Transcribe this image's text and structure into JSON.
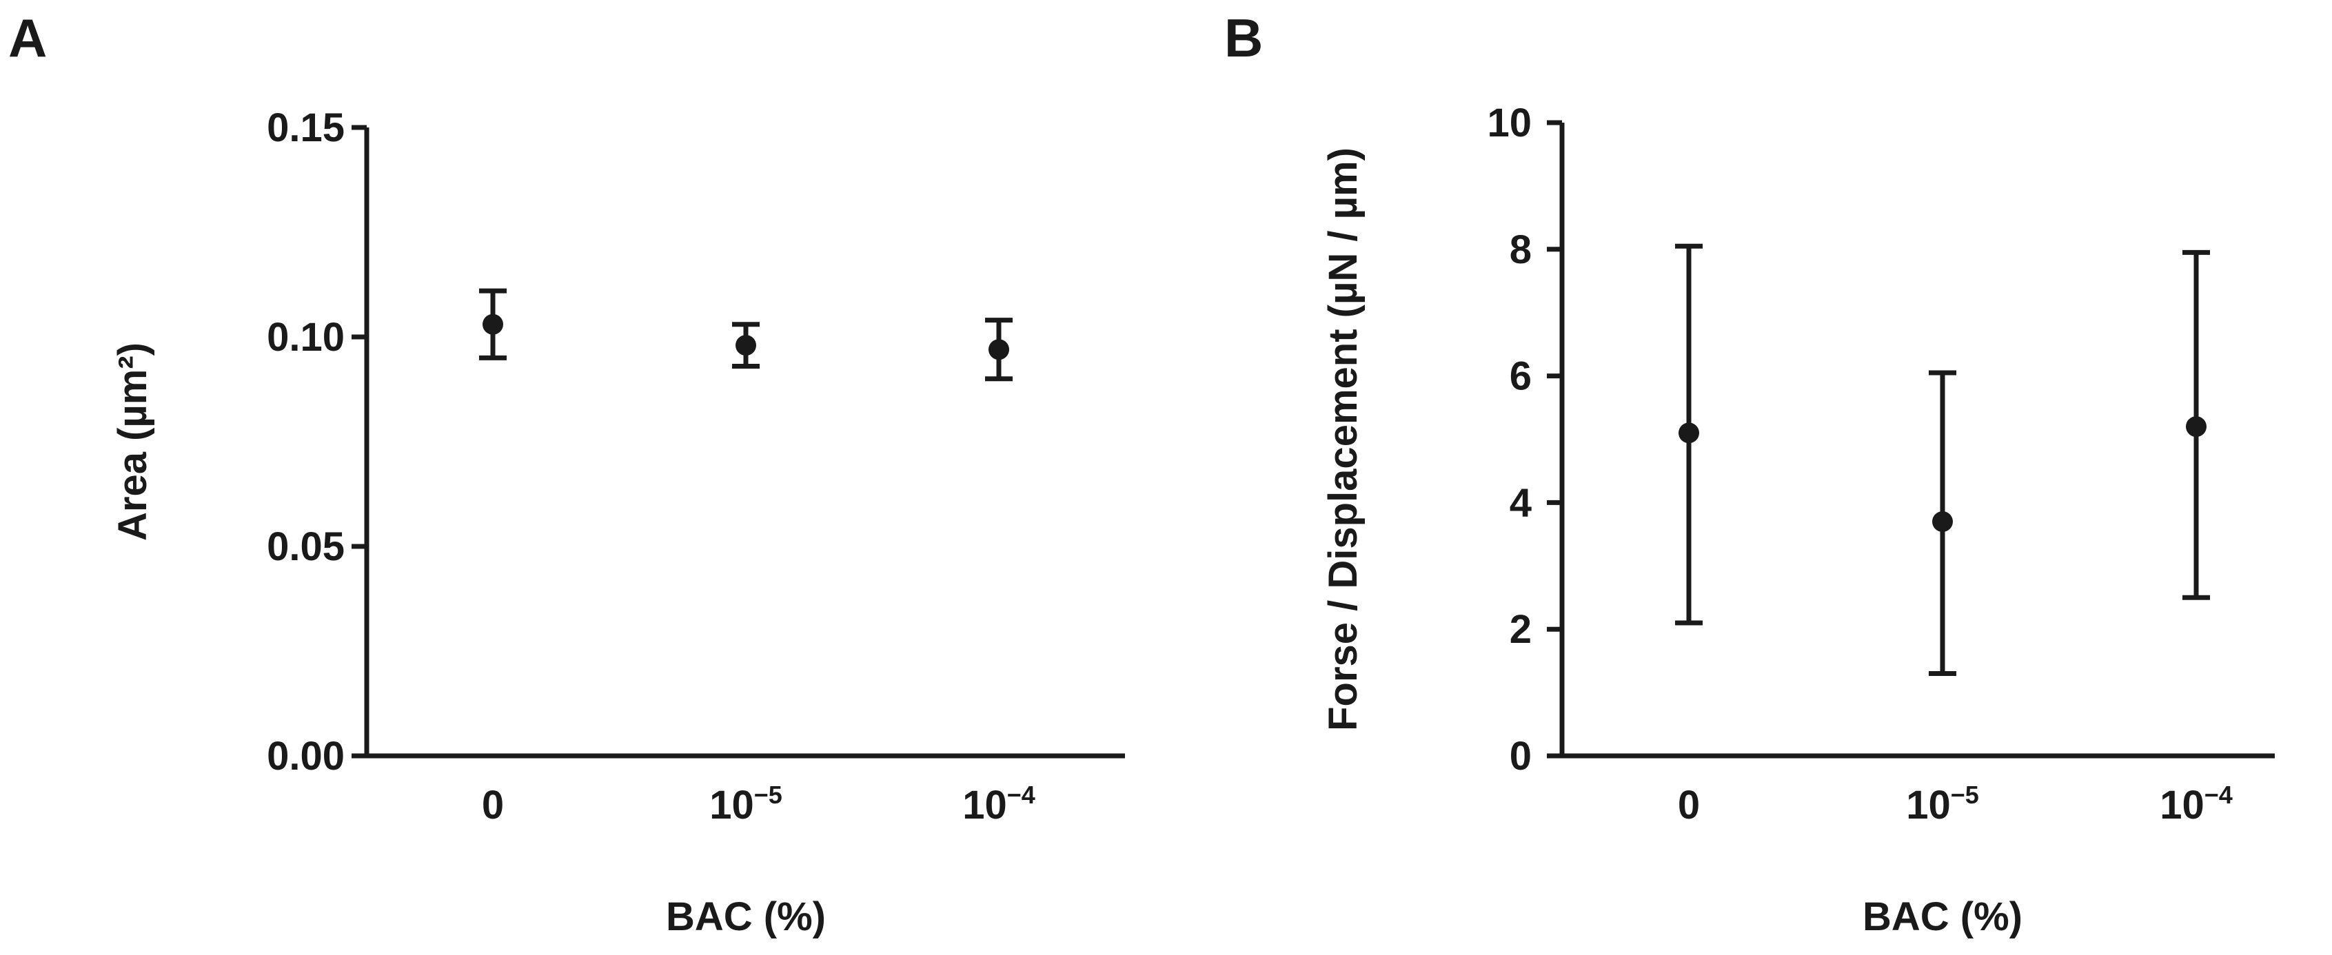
{
  "panels": [
    {
      "letter": "A"
    },
    {
      "letter": "B"
    }
  ],
  "chart_data": [
    {
      "type": "scatter",
      "panel": "A",
      "categories": [
        "0",
        "10",
        "10"
      ],
      "category_exponents": [
        "",
        "−5",
        "−4"
      ],
      "values": [
        0.103,
        0.098,
        0.097
      ],
      "error_low": [
        0.095,
        0.093,
        0.09
      ],
      "error_high": [
        0.111,
        0.103,
        0.104
      ],
      "ylim": [
        0,
        0.15
      ],
      "yticks": [
        "0.00",
        "0.05",
        "0.10",
        "0.15"
      ],
      "ylabel": "Area (µm²)",
      "xlabel": "BAC (%)",
      "color": "#1a1a1a"
    },
    {
      "type": "scatter",
      "panel": "B",
      "categories": [
        "0",
        "10",
        "10"
      ],
      "category_exponents": [
        "",
        "−5",
        "−4"
      ],
      "values": [
        5.1,
        3.7,
        5.2
      ],
      "error_low": [
        2.1,
        1.3,
        2.5
      ],
      "error_high": [
        8.05,
        6.05,
        7.95
      ],
      "ylim": [
        0,
        10
      ],
      "yticks": [
        "0",
        "2",
        "4",
        "6",
        "8",
        "10"
      ],
      "ylabel": "Forse / Displacement (µN / µm)",
      "xlabel": "BAC (%)",
      "color": "#1a1a1a"
    }
  ]
}
